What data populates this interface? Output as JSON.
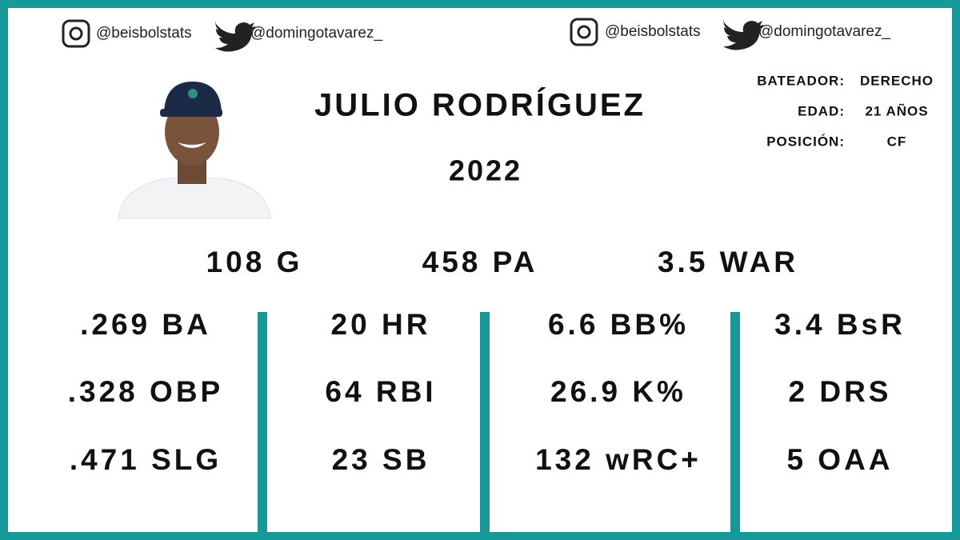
{
  "header": {
    "socials": [
      "@beisbolstats",
      "@domingotavarez_",
      "@beisbolstats",
      "@domingotavarez_"
    ],
    "title": "JULIO RODRÍGUEZ",
    "year": "2022"
  },
  "info": {
    "rows": [
      [
        "BATEADOR:",
        "DERECHO"
      ],
      [
        "EDAD:",
        "21 AÑOS"
      ],
      [
        "POSICIÓN:",
        "CF"
      ]
    ]
  },
  "summary": [
    "108 G",
    "458 PA",
    "3.5 WAR"
  ],
  "columns": [
    [
      ".269 BA",
      ".328 OBP",
      ".471 SLG"
    ],
    [
      "20 HR",
      "64 RBI",
      "23 SB"
    ],
    [
      "6.6 BB%",
      "26.9 K%",
      "132 wRC+"
    ],
    [
      "3.4 BsR",
      "2 DRS",
      "5 OAA"
    ]
  ]
}
